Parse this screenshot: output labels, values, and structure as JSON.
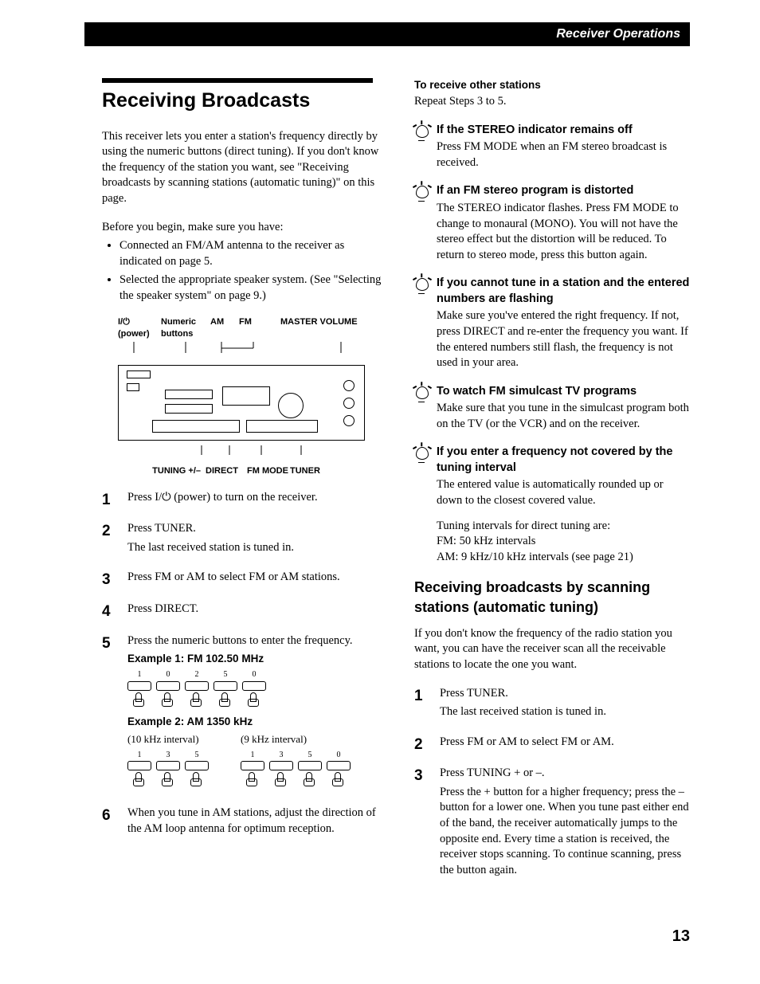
{
  "header": {
    "title": "Receiver Operations"
  },
  "left": {
    "title": "Receiving Broadcasts",
    "intro": "This receiver lets you enter a station's frequency directly by using the numeric buttons (direct tuning). If you don't know the frequency of the station you want, see \"Receiving broadcasts by scanning stations (automatic tuning)\" on this page.",
    "before_begin": "Before you begin, make sure you have:",
    "bullets": [
      "Connected an FM/AM antenna to the receiver as indicated on page 5.",
      "Selected the appropriate speaker system. (See \"Selecting the speaker system\" on page 9.)"
    ],
    "diagram_labels_top": [
      "I/⏻ (power)",
      "Numeric buttons",
      "AM",
      "FM",
      "MASTER VOLUME"
    ],
    "diagram_labels_bot": [
      "TUNING +/–",
      "DIRECT",
      "FM MODE",
      "TUNER"
    ],
    "steps": [
      {
        "num": "1",
        "text": "Press I/⏻ (power) to turn on the receiver."
      },
      {
        "num": "2",
        "text": "Press TUNER.",
        "sub": "The last received station is tuned in."
      },
      {
        "num": "3",
        "text": "Press FM or AM to select FM or AM stations."
      },
      {
        "num": "4",
        "text": "Press DIRECT."
      },
      {
        "num": "5",
        "text": "Press the numeric buttons to enter the frequency."
      },
      {
        "num": "6",
        "text": "When you tune in AM stations, adjust the direction of the AM loop antenna for optimum reception."
      }
    ],
    "example1_title": "Example 1: FM 102.50 MHz",
    "example1_keys": [
      "1",
      "0",
      "2",
      "5",
      "0"
    ],
    "example2_title": "Example 2: AM 1350 kHz",
    "example2_note_a": "(10 kHz interval)",
    "example2_note_b": "(9 kHz interval)",
    "example2_keys_a": [
      "1",
      "3",
      "5"
    ],
    "example2_keys_b": [
      "1",
      "3",
      "5",
      "0"
    ]
  },
  "right": {
    "receive_other_title": "To receive other stations",
    "receive_other_text": "Repeat Steps 3 to 5.",
    "tips": [
      {
        "title": "If the STEREO indicator remains off",
        "text": "Press FM MODE when an FM stereo broadcast is received."
      },
      {
        "title": "If an FM stereo program is distorted",
        "text": "The STEREO indicator flashes. Press FM MODE to change to monaural (MONO). You will not have the stereo effect but the distortion will be reduced. To return to stereo mode, press this button again."
      },
      {
        "title": "If you cannot tune in a station and the entered numbers are flashing",
        "text": "Make sure you've entered the right frequency. If not, press DIRECT and re-enter the frequency you want. If the entered numbers still flash, the frequency is not used in your area."
      },
      {
        "title": "To watch FM simulcast TV programs",
        "text": "Make sure that you tune in the simulcast program both on the TV (or the VCR) and on the receiver."
      },
      {
        "title": "If you enter a frequency not covered by the tuning interval",
        "text": "The entered value is automatically rounded up or down to the closest covered value.",
        "extra": "Tuning intervals for direct tuning are:\nFM: 50 kHz intervals\nAM: 9 kHz/10 kHz intervals (see page 21)"
      }
    ],
    "subheading": "Receiving broadcasts by scanning stations (automatic tuning)",
    "subpara": "If you don't know the frequency of the radio station you want, you can have the receiver scan all the receivable stations to locate the one you want.",
    "substeps": [
      {
        "num": "1",
        "text": "Press TUNER.",
        "sub": "The last received station is tuned in."
      },
      {
        "num": "2",
        "text": "Press FM or AM to select FM or AM."
      },
      {
        "num": "3",
        "text": "Press TUNING + or –.",
        "sub": "Press the + button for a higher frequency; press the – button for a lower one. When you tune past either end of the band, the receiver automatically jumps to the opposite end. Every time a station is received, the receiver stops scanning. To continue scanning, press the button again."
      }
    ]
  },
  "page_num": "13"
}
